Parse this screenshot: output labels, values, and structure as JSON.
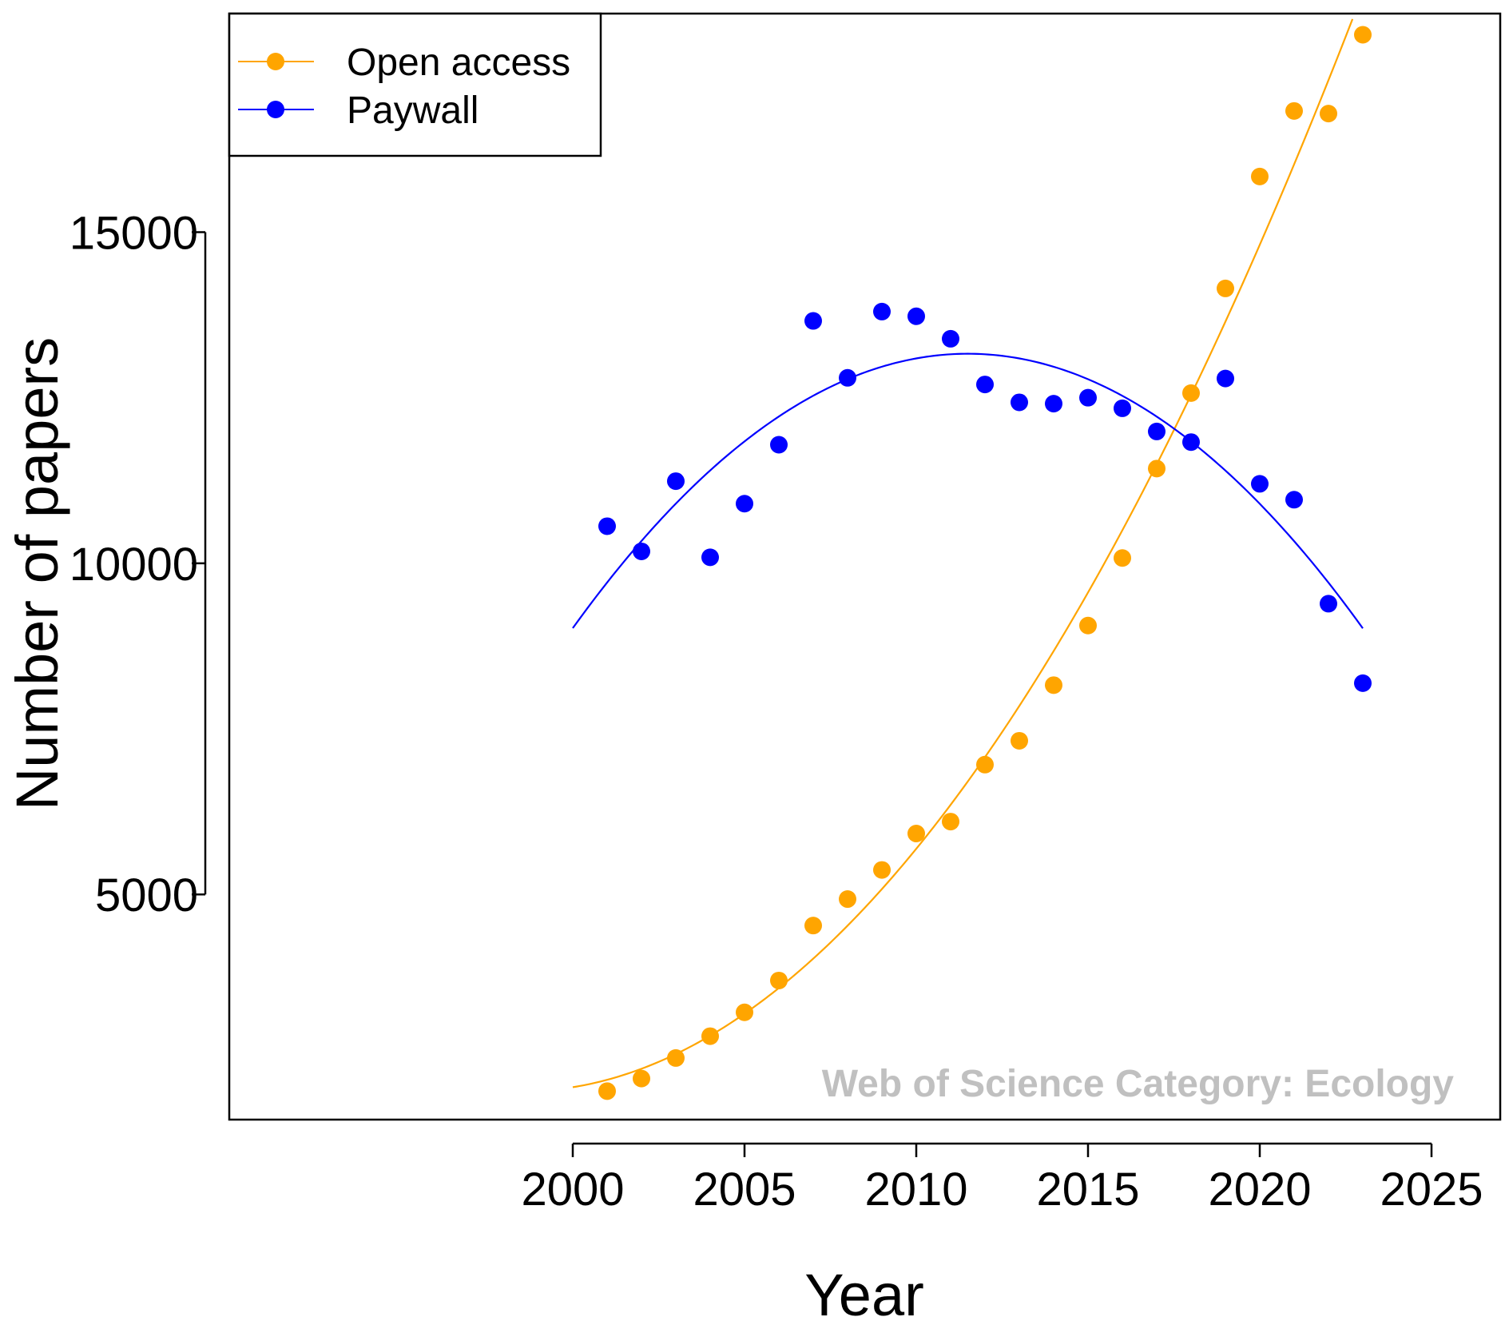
{
  "chart_data": {
    "type": "scatter",
    "xlabel": "Year",
    "ylabel": "Number of papers",
    "xlim": [
      1990,
      2027
    ],
    "ylim": [
      1600,
      18300
    ],
    "x_ticks": [
      2000,
      2005,
      2010,
      2015,
      2020,
      2025
    ],
    "x_tick_labels": [
      "2000",
      "2005",
      "2010",
      "2015",
      "2020",
      "2025"
    ],
    "y_ticks": [
      5000,
      10000,
      15000
    ],
    "y_tick_labels": [
      "5000",
      "10000",
      "15000"
    ],
    "grid": false,
    "legend_position": "top-left",
    "annotation": "Web of Science Category: Ecology",
    "series": [
      {
        "name": "Open access",
        "color": "#FFA500",
        "fit": "quadratic",
        "x": [
          2001,
          2002,
          2003,
          2004,
          2005,
          2006,
          2007,
          2008,
          2009,
          2010,
          2011,
          2012,
          2013,
          2014,
          2015,
          2016,
          2017,
          2018,
          2019,
          2020,
          2021,
          2022,
          2023
        ],
        "y": [
          2030,
          2220,
          2530,
          2860,
          3220,
          3700,
          4530,
          4930,
          5370,
          5920,
          6100,
          6960,
          7320,
          8160,
          9060,
          10080,
          11430,
          12570,
          14150,
          15840,
          16830,
          16790,
          17980
        ]
      },
      {
        "name": "Paywall",
        "color": "#0000FF",
        "fit": "quadratic",
        "x": [
          2001,
          2002,
          2003,
          2004,
          2005,
          2006,
          2007,
          2008,
          2009,
          2010,
          2011,
          2012,
          2013,
          2014,
          2015,
          2016,
          2017,
          2018,
          2019,
          2020,
          2021,
          2022,
          2023
        ],
        "y": [
          10560,
          10180,
          11240,
          10090,
          10900,
          11790,
          13660,
          12800,
          13800,
          13730,
          13390,
          12700,
          12430,
          12410,
          12500,
          12340,
          11990,
          11830,
          12790,
          11200,
          10960,
          9390,
          8190
        ]
      }
    ]
  }
}
